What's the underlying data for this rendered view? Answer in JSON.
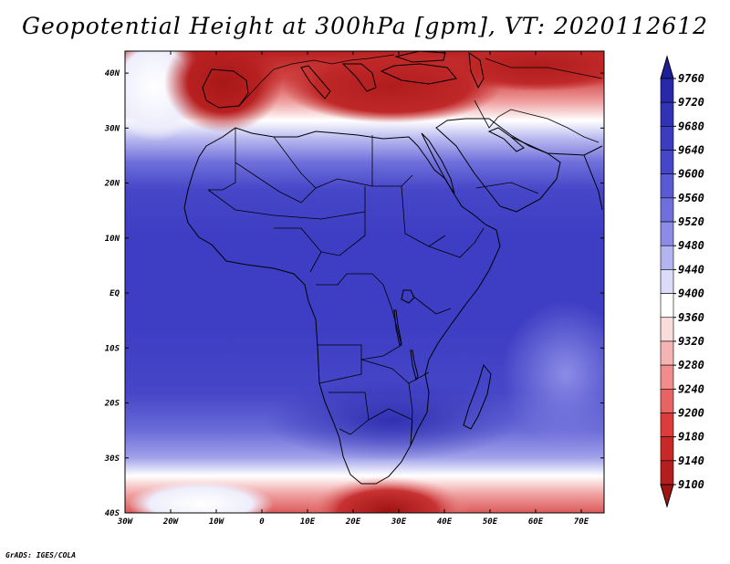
{
  "title": "Geopotential Height at 300hPa [gpm], VT: 2020112612",
  "credit": "GrADS: IGES/COLA",
  "map": {
    "lon_labels": [
      "30W",
      "20W",
      "10W",
      "0",
      "10E",
      "20E",
      "30E",
      "40E",
      "50E",
      "60E",
      "70E"
    ],
    "lat_labels": [
      "40N",
      "30N",
      "20N",
      "10N",
      "EQ",
      "10S",
      "20S",
      "30S",
      "40S"
    ],
    "lon_range": [
      -30,
      75
    ],
    "lat_range": [
      -40,
      44
    ]
  },
  "colorbar": {
    "levels": [
      "9760",
      "9720",
      "9680",
      "9640",
      "9600",
      "9560",
      "9520",
      "9480",
      "9440",
      "9400",
      "9360",
      "9320",
      "9280",
      "9240",
      "9200",
      "9180",
      "9140",
      "9100"
    ],
    "colors": [
      "#1e1e96",
      "#2828a8",
      "#3232b4",
      "#3c3cbe",
      "#4646c8",
      "#5a5ad2",
      "#7070dc",
      "#8c8ce6",
      "#b4b4f0",
      "#dcdcfa",
      "#ffffff",
      "#fadcdc",
      "#f5b4b4",
      "#f08c8c",
      "#e66464",
      "#dc3c3c",
      "#c82828",
      "#b41e1e",
      "#a01414"
    ]
  }
}
